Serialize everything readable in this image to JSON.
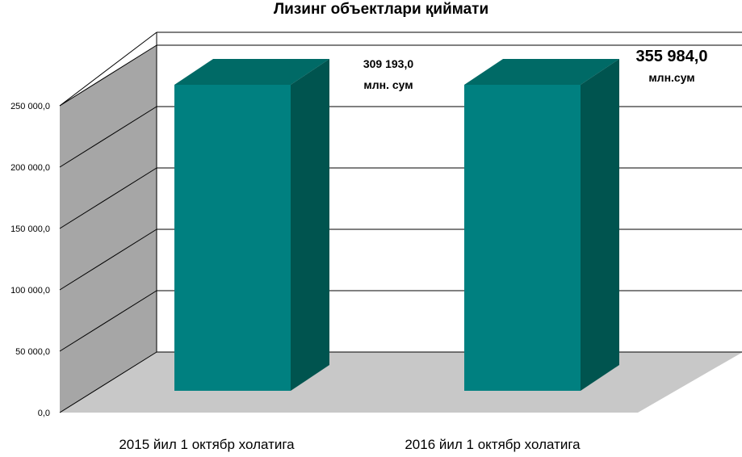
{
  "chart_data": {
    "type": "bar",
    "title": "Лизинг объектлари қиймати",
    "categories": [
      "2015 йил 1 октябр холатига",
      "2016 йил 1 октябр холатига"
    ],
    "values": [
      309193.0,
      355984.0
    ],
    "value_labels": [
      "309 193,0",
      "355 984,0"
    ],
    "unit_labels": [
      "млн. сум",
      "млн.сум"
    ],
    "yticks": [
      "0,0",
      "50 000,0",
      "100 000,0",
      "150 000,0",
      "200 000,0",
      "250 000,0"
    ],
    "ylim": [
      0,
      250000
    ],
    "grid": true,
    "style": "3d-column",
    "colors": {
      "bar_front": "#008080",
      "bar_top": "#006a66",
      "bar_side": "#00544f",
      "back_wall": "#ffffff",
      "side_wall": "#a6a6a6",
      "floor": "#c8c8c8"
    }
  }
}
